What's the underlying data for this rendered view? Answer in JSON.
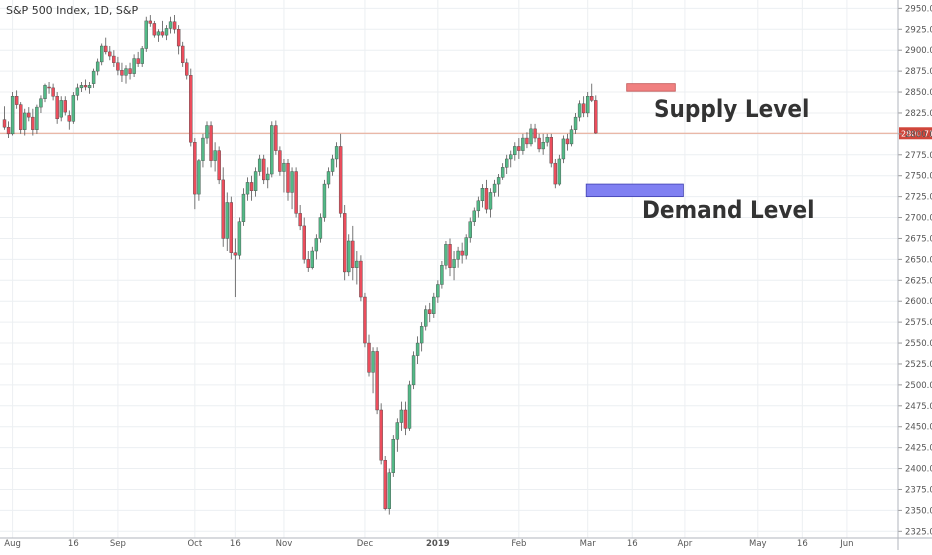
{
  "chart_data": {
    "type": "candlestick",
    "title": "S&P 500 Index, 1D, S&P",
    "y_range": [
      2317,
      2960
    ],
    "y_ticks": [
      2325,
      2350,
      2375,
      2400,
      2425,
      2450,
      2475,
      2500,
      2525,
      2550,
      2575,
      2600,
      2625,
      2650,
      2675,
      2700,
      2725,
      2750,
      2775,
      2800,
      2825,
      2850,
      2875,
      2900,
      2925,
      2950
    ],
    "y_tick_labels": [
      "2325.00",
      "2350.00",
      "2375.00",
      "2400.00",
      "2425.00",
      "2450.00",
      "2475.00",
      "2500.00",
      "2525.00",
      "2550.00",
      "2575.00",
      "2600.00",
      "2625.00",
      "2650.00",
      "2675.00",
      "2700.00",
      "2725.00",
      "2750.00",
      "2775.00",
      "2800.00",
      "2825.00",
      "2850.00",
      "2875.00",
      "2900.00",
      "2925.00",
      "2950.00"
    ],
    "x_labels": [
      "Aug",
      "16",
      "Sep",
      "Oct",
      "16",
      "Nov",
      "Dec",
      "2019",
      "Feb",
      "Mar",
      "16",
      "Apr",
      "May",
      "16",
      "Jun"
    ],
    "x_label_bold": [
      false,
      false,
      false,
      false,
      false,
      false,
      false,
      true,
      false,
      false,
      false,
      false,
      false,
      false,
      false
    ],
    "x_label_bar_index": [
      2,
      17,
      28,
      47,
      57,
      69,
      89,
      107,
      127,
      144,
      155,
      168,
      186,
      197,
      208
    ],
    "grid": true,
    "current_price": 2800.71,
    "current_price_label": "2800.71",
    "colors": {
      "up": "#53b987",
      "down": "#eb4d5c",
      "price_line": "#e8a58f",
      "price_tag": "#d0453a",
      "supply_zone": "#f08080",
      "demand_zone": "#8080f2",
      "grid": "#eceff2"
    },
    "annotations": [
      {
        "label": "Supply Level",
        "zone_low": 2851,
        "zone_high": 2860,
        "bar_start": 154,
        "bar_end": 166
      },
      {
        "label": "Demand Level",
        "zone_low": 2725,
        "zone_high": 2740,
        "bar_start": 144,
        "bar_end": 168
      }
    ],
    "candles": [
      [
        2817,
        2833,
        2805,
        2808
      ],
      [
        2808,
        2815,
        2795,
        2800
      ],
      [
        2800,
        2850,
        2798,
        2845
      ],
      [
        2845,
        2852,
        2830,
        2835
      ],
      [
        2835,
        2838,
        2800,
        2805
      ],
      [
        2805,
        2830,
        2798,
        2825
      ],
      [
        2825,
        2832,
        2815,
        2820
      ],
      [
        2820,
        2830,
        2798,
        2805
      ],
      [
        2805,
        2835,
        2800,
        2832
      ],
      [
        2832,
        2846,
        2825,
        2842
      ],
      [
        2842,
        2860,
        2838,
        2858
      ],
      [
        2856,
        2862,
        2848,
        2855
      ],
      [
        2855,
        2860,
        2840,
        2845
      ],
      [
        2845,
        2850,
        2812,
        2818
      ],
      [
        2820,
        2845,
        2815,
        2840
      ],
      [
        2840,
        2845,
        2822,
        2826
      ],
      [
        2822,
        2828,
        2805,
        2815
      ],
      [
        2815,
        2850,
        2812,
        2846
      ],
      [
        2846,
        2860,
        2840,
        2855
      ],
      [
        2855,
        2862,
        2850,
        2858
      ],
      [
        2858,
        2865,
        2852,
        2856
      ],
      [
        2855,
        2862,
        2848,
        2858
      ],
      [
        2860,
        2878,
        2855,
        2875
      ],
      [
        2875,
        2890,
        2870,
        2886
      ],
      [
        2886,
        2908,
        2882,
        2905
      ],
      [
        2905,
        2915,
        2895,
        2898
      ],
      [
        2898,
        2905,
        2888,
        2893
      ],
      [
        2893,
        2900,
        2880,
        2885
      ],
      [
        2885,
        2892,
        2870,
        2876
      ],
      [
        2876,
        2885,
        2862,
        2870
      ],
      [
        2870,
        2882,
        2860,
        2878
      ],
      [
        2878,
        2885,
        2865,
        2872
      ],
      [
        2872,
        2895,
        2868,
        2890
      ],
      [
        2890,
        2898,
        2880,
        2884
      ],
      [
        2884,
        2905,
        2880,
        2902
      ],
      [
        2902,
        2940,
        2898,
        2935
      ],
      [
        2935,
        2942,
        2928,
        2932
      ],
      [
        2932,
        2935,
        2915,
        2918
      ],
      [
        2918,
        2925,
        2910,
        2922
      ],
      [
        2922,
        2935,
        2915,
        2918
      ],
      [
        2918,
        2930,
        2912,
        2926
      ],
      [
        2926,
        2940,
        2920,
        2934
      ],
      [
        2934,
        2942,
        2920,
        2925
      ],
      [
        2925,
        2930,
        2895,
        2905
      ],
      [
        2905,
        2910,
        2880,
        2885
      ],
      [
        2885,
        2890,
        2865,
        2870
      ],
      [
        2870,
        2878,
        2785,
        2790
      ],
      [
        2790,
        2795,
        2710,
        2728
      ],
      [
        2728,
        2770,
        2720,
        2768
      ],
      [
        2768,
        2800,
        2760,
        2795
      ],
      [
        2795,
        2815,
        2788,
        2810
      ],
      [
        2810,
        2815,
        2760,
        2768
      ],
      [
        2768,
        2790,
        2755,
        2780
      ],
      [
        2780,
        2785,
        2740,
        2745
      ],
      [
        2745,
        2760,
        2665,
        2675
      ],
      [
        2675,
        2730,
        2660,
        2718
      ],
      [
        2718,
        2725,
        2650,
        2658
      ],
      [
        2658,
        2675,
        2605,
        2655
      ],
      [
        2655,
        2700,
        2650,
        2695
      ],
      [
        2695,
        2735,
        2690,
        2728
      ],
      [
        2728,
        2748,
        2720,
        2742
      ],
      [
        2742,
        2750,
        2720,
        2732
      ],
      [
        2732,
        2760,
        2725,
        2755
      ],
      [
        2755,
        2775,
        2750,
        2770
      ],
      [
        2770,
        2775,
        2740,
        2745
      ],
      [
        2745,
        2760,
        2735,
        2752
      ],
      [
        2752,
        2815,
        2748,
        2810
      ],
      [
        2810,
        2816,
        2775,
        2780
      ],
      [
        2780,
        2785,
        2750,
        2755
      ],
      [
        2755,
        2770,
        2730,
        2765
      ],
      [
        2765,
        2770,
        2720,
        2730
      ],
      [
        2730,
        2760,
        2710,
        2755
      ],
      [
        2755,
        2760,
        2700,
        2705
      ],
      [
        2705,
        2715,
        2685,
        2690
      ],
      [
        2690,
        2700,
        2645,
        2650
      ],
      [
        2650,
        2660,
        2635,
        2640
      ],
      [
        2640,
        2665,
        2638,
        2660
      ],
      [
        2660,
        2680,
        2650,
        2675
      ],
      [
        2675,
        2705,
        2670,
        2700
      ],
      [
        2700,
        2745,
        2695,
        2740
      ],
      [
        2740,
        2760,
        2735,
        2755
      ],
      [
        2755,
        2775,
        2750,
        2770
      ],
      [
        2770,
        2790,
        2760,
        2785
      ],
      [
        2785,
        2800,
        2700,
        2705
      ],
      [
        2705,
        2715,
        2625,
        2635
      ],
      [
        2635,
        2680,
        2630,
        2672
      ],
      [
        2672,
        2690,
        2625,
        2640
      ],
      [
        2640,
        2660,
        2620,
        2648
      ],
      [
        2648,
        2655,
        2600,
        2605
      ],
      [
        2605,
        2610,
        2545,
        2550
      ],
      [
        2550,
        2560,
        2510,
        2515
      ],
      [
        2515,
        2545,
        2490,
        2540
      ],
      [
        2540,
        2545,
        2465,
        2470
      ],
      [
        2470,
        2478,
        2405,
        2410
      ],
      [
        2410,
        2415,
        2350,
        2352
      ],
      [
        2352,
        2400,
        2345,
        2395
      ],
      [
        2395,
        2440,
        2390,
        2435
      ],
      [
        2435,
        2460,
        2420,
        2455
      ],
      [
        2455,
        2480,
        2445,
        2470
      ],
      [
        2470,
        2480,
        2440,
        2448
      ],
      [
        2448,
        2505,
        2445,
        2500
      ],
      [
        2500,
        2540,
        2495,
        2535
      ],
      [
        2535,
        2558,
        2525,
        2550
      ],
      [
        2550,
        2575,
        2540,
        2570
      ],
      [
        2570,
        2595,
        2565,
        2590
      ],
      [
        2590,
        2598,
        2575,
        2585
      ],
      [
        2585,
        2610,
        2580,
        2605
      ],
      [
        2605,
        2625,
        2598,
        2620
      ],
      [
        2620,
        2648,
        2615,
        2643
      ],
      [
        2643,
        2672,
        2638,
        2668
      ],
      [
        2668,
        2675,
        2630,
        2640
      ],
      [
        2640,
        2660,
        2625,
        2650
      ],
      [
        2650,
        2665,
        2640,
        2660
      ],
      [
        2660,
        2670,
        2645,
        2655
      ],
      [
        2655,
        2680,
        2650,
        2676
      ],
      [
        2676,
        2700,
        2670,
        2695
      ],
      [
        2695,
        2712,
        2690,
        2708
      ],
      [
        2708,
        2725,
        2700,
        2720
      ],
      [
        2720,
        2740,
        2712,
        2735
      ],
      [
        2735,
        2745,
        2705,
        2710
      ],
      [
        2710,
        2735,
        2700,
        2730
      ],
      [
        2730,
        2745,
        2725,
        2740
      ],
      [
        2740,
        2752,
        2725,
        2748
      ],
      [
        2748,
        2765,
        2745,
        2760
      ],
      [
        2760,
        2775,
        2752,
        2770
      ],
      [
        2770,
        2780,
        2760,
        2775
      ],
      [
        2775,
        2790,
        2768,
        2785
      ],
      [
        2785,
        2795,
        2770,
        2780
      ],
      [
        2780,
        2800,
        2775,
        2795
      ],
      [
        2795,
        2802,
        2783,
        2788
      ],
      [
        2788,
        2812,
        2785,
        2806
      ],
      [
        2806,
        2812,
        2790,
        2795
      ],
      [
        2795,
        2800,
        2778,
        2782
      ],
      [
        2782,
        2800,
        2775,
        2790
      ],
      [
        2790,
        2800,
        2785,
        2796
      ],
      [
        2796,
        2800,
        2760,
        2765
      ],
      [
        2765,
        2770,
        2735,
        2740
      ],
      [
        2740,
        2775,
        2738,
        2770
      ],
      [
        2770,
        2798,
        2765,
        2794
      ],
      [
        2794,
        2800,
        2780,
        2788
      ],
      [
        2788,
        2810,
        2785,
        2805
      ],
      [
        2805,
        2825,
        2800,
        2820
      ],
      [
        2820,
        2840,
        2815,
        2836
      ],
      [
        2836,
        2845,
        2820,
        2825
      ],
      [
        2825,
        2850,
        2820,
        2845
      ],
      [
        2845,
        2860,
        2838,
        2840
      ],
      [
        2840,
        2846,
        2800,
        2801
      ]
    ]
  }
}
